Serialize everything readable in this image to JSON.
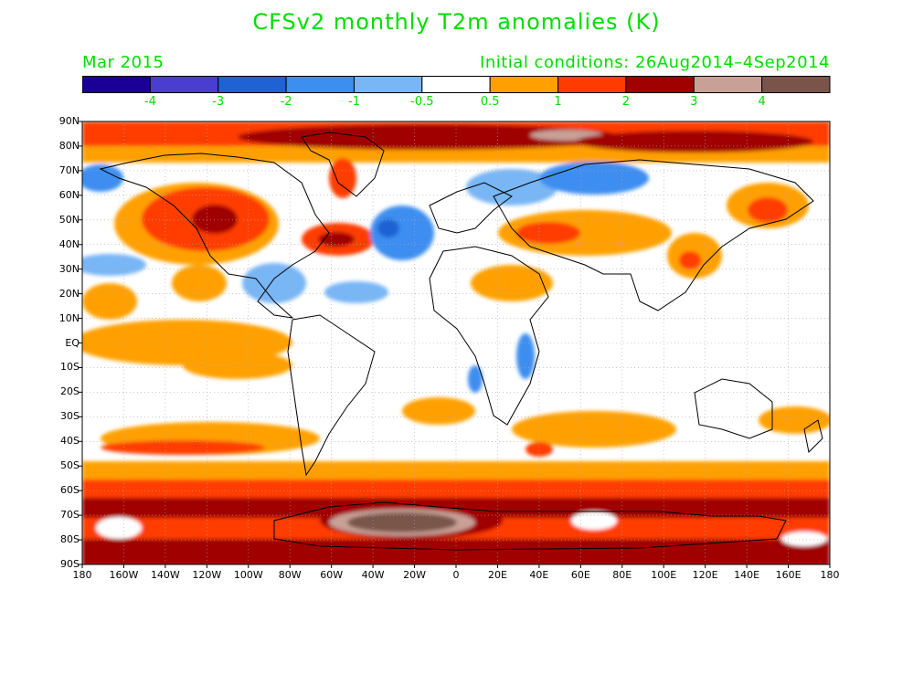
{
  "title": "CFSv2 monthly T2m anomalies (K)",
  "forecast_month": "Mar 2015",
  "initial_conditions": "Initial conditions: 26Aug2014–4Sep2014",
  "colorbar": {
    "colors": [
      "#1a0096",
      "#4a3dd0",
      "#1e62d4",
      "#3c8ef0",
      "#78b6f5",
      "#ffffff",
      "#ffa000",
      "#ff3c00",
      "#a00000",
      "#c8a096",
      "#7a5448"
    ],
    "labels": [
      "-4",
      "-3",
      "-2",
      "-1",
      "-0.5",
      "0.5",
      "1",
      "2",
      "3",
      "4"
    ]
  },
  "lat_labels": [
    "90N",
    "80N",
    "70N",
    "60N",
    "50N",
    "40N",
    "30N",
    "20N",
    "10N",
    "EQ",
    "10S",
    "20S",
    "30S",
    "40S",
    "50S",
    "60S",
    "70S",
    "80S",
    "90S"
  ],
  "lon_labels": [
    "180",
    "160W",
    "140W",
    "120W",
    "100W",
    "80W",
    "60W",
    "40W",
    "20W",
    "0",
    "20E",
    "40E",
    "60E",
    "80E",
    "100E",
    "120E",
    "140E",
    "160E",
    "180"
  ]
}
